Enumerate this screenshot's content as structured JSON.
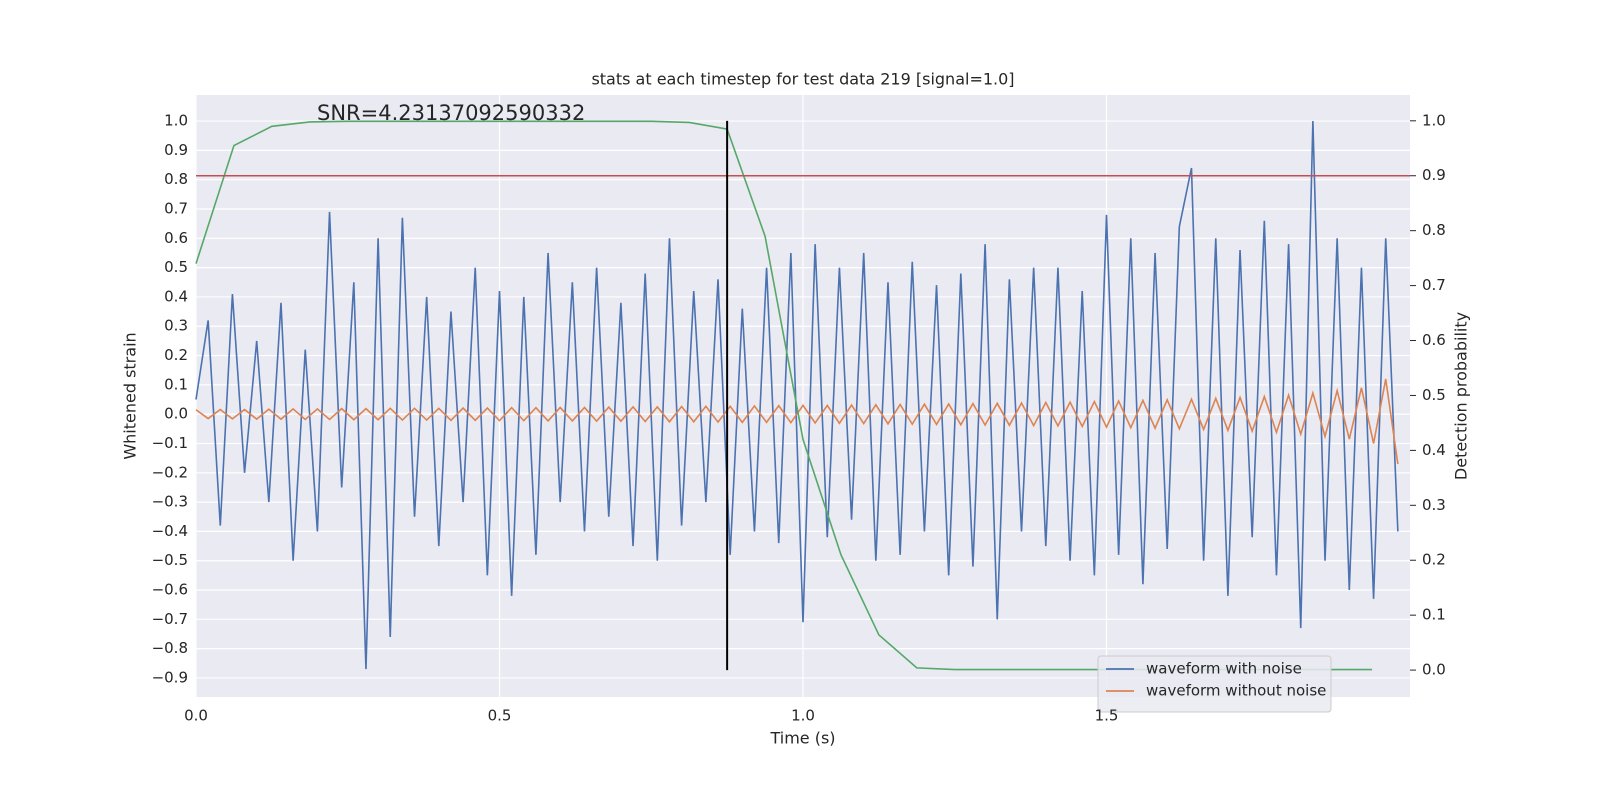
{
  "chart_data": {
    "type": "line",
    "title": "stats at each timestep for test data 219 [signal=1.0]",
    "annotation": "SNR=4.23137092590332",
    "x_label": "Time (s)",
    "y_label": "Whitened strain",
    "y2_label": "Detection probability",
    "xlim": [
      0,
      2.0
    ],
    "ylim": [
      -0.965,
      1.089
    ],
    "y2lim": [
      -0.049,
      1.047
    ],
    "xticks": [
      {
        "value": 0,
        "label": "0.0"
      },
      0.5,
      {
        "value": 1,
        "label": "1.0"
      },
      1.5
    ],
    "yticks": [
      {
        "value": -0.9,
        "label": "−0.9"
      },
      {
        "value": -0.8,
        "label": "−0.8"
      },
      {
        "value": -0.7,
        "label": "−0.7"
      },
      {
        "value": -0.6,
        "label": "−0.6"
      },
      {
        "value": -0.5,
        "label": "−0.5"
      },
      {
        "value": -0.4,
        "label": "−0.4"
      },
      {
        "value": -0.3,
        "label": "−0.3"
      },
      {
        "value": -0.2,
        "label": "−0.2"
      },
      {
        "value": -0.1,
        "label": "−0.1"
      },
      {
        "value": 0,
        "label": "0.0"
      },
      0.1,
      0.2,
      0.3,
      0.4,
      0.5,
      0.6,
      0.7,
      0.8,
      0.9,
      {
        "value": 1,
        "label": "1.0"
      }
    ],
    "y2ticks": [
      {
        "value": 0,
        "label": "0.0"
      },
      0.1,
      0.2,
      0.3,
      0.4,
      0.5,
      0.6,
      0.7,
      0.8,
      0.9,
      {
        "value": 1,
        "label": "1.0"
      }
    ],
    "grid": true,
    "legend": "lower right",
    "series": [
      {
        "name": "waveform with noise",
        "color": "#4c72b0",
        "x": [
          0,
          0.02,
          0.04,
          0.06,
          0.08,
          0.1,
          0.12,
          0.14,
          0.16,
          0.18,
          0.2,
          0.22,
          0.24,
          0.26,
          0.28,
          0.3,
          0.32,
          0.34,
          0.36,
          0.38,
          0.4,
          0.42,
          0.44,
          0.46,
          0.48,
          0.5,
          0.52,
          0.54,
          0.56,
          0.58,
          0.6,
          0.62,
          0.64,
          0.66,
          0.68,
          0.7,
          0.72,
          0.74,
          0.76,
          0.78,
          0.8,
          0.82,
          0.84,
          0.86,
          0.88,
          0.9,
          0.92,
          0.94,
          0.96,
          0.98,
          1.0,
          1.02,
          1.04,
          1.06,
          1.08,
          1.1,
          1.12,
          1.14,
          1.16,
          1.18,
          1.2,
          1.22,
          1.24,
          1.26,
          1.28,
          1.3,
          1.32,
          1.34,
          1.36,
          1.38,
          1.4,
          1.42,
          1.44,
          1.46,
          1.48,
          1.5,
          1.52,
          1.54,
          1.56,
          1.58,
          1.6,
          1.62,
          1.64,
          1.66,
          1.68,
          1.7,
          1.72,
          1.74,
          1.76,
          1.78,
          1.8,
          1.82,
          1.84,
          1.86,
          1.88,
          1.9,
          1.92,
          1.94,
          1.96,
          1.98
        ],
        "values": [
          0.05,
          0.32,
          -0.38,
          0.41,
          -0.2,
          0.25,
          -0.3,
          0.38,
          -0.5,
          0.22,
          -0.4,
          0.69,
          -0.25,
          0.45,
          -0.87,
          0.6,
          -0.76,
          0.67,
          -0.35,
          0.4,
          -0.45,
          0.35,
          -0.3,
          0.5,
          -0.55,
          0.42,
          -0.62,
          0.4,
          -0.48,
          0.55,
          -0.3,
          0.45,
          -0.4,
          0.5,
          -0.35,
          0.38,
          -0.45,
          0.48,
          -0.5,
          0.6,
          -0.38,
          0.42,
          -0.3,
          0.46,
          -0.48,
          0.36,
          -0.4,
          0.5,
          -0.44,
          0.55,
          -0.71,
          0.58,
          -0.42,
          0.5,
          -0.36,
          0.55,
          -0.5,
          0.45,
          -0.48,
          0.52,
          -0.4,
          0.44,
          -0.55,
          0.48,
          -0.52,
          0.58,
          -0.7,
          0.46,
          -0.4,
          0.5,
          -0.45,
          0.5,
          -0.5,
          0.42,
          -0.55,
          0.68,
          -0.48,
          0.6,
          -0.58,
          0.55,
          -0.46,
          0.64,
          0.84,
          -0.5,
          0.6,
          -0.62,
          0.56,
          -0.42,
          0.66,
          -0.55,
          0.58,
          -0.73,
          1.0,
          -0.5,
          0.6,
          -0.6,
          0.5,
          -0.63,
          0.6,
          -0.4
        ]
      },
      {
        "name": "waveform without noise",
        "color": "#dd8452",
        "x": [
          0,
          0.02,
          0.04,
          0.06,
          0.08,
          0.1,
          0.12,
          0.14,
          0.16,
          0.18,
          0.2,
          0.22,
          0.24,
          0.26,
          0.28,
          0.3,
          0.32,
          0.34,
          0.36,
          0.38,
          0.4,
          0.42,
          0.44,
          0.46,
          0.48,
          0.5,
          0.52,
          0.54,
          0.56,
          0.58,
          0.6,
          0.62,
          0.64,
          0.66,
          0.68,
          0.7,
          0.72,
          0.74,
          0.76,
          0.78,
          0.8,
          0.82,
          0.84,
          0.86,
          0.88,
          0.9,
          0.92,
          0.94,
          0.96,
          0.98,
          1.0,
          1.02,
          1.04,
          1.06,
          1.08,
          1.1,
          1.12,
          1.14,
          1.16,
          1.18,
          1.2,
          1.22,
          1.24,
          1.26,
          1.28,
          1.3,
          1.32,
          1.34,
          1.36,
          1.38,
          1.4,
          1.42,
          1.44,
          1.46,
          1.48,
          1.5,
          1.52,
          1.54,
          1.56,
          1.58,
          1.6,
          1.62,
          1.64,
          1.66,
          1.68,
          1.7,
          1.72,
          1.74,
          1.76,
          1.78,
          1.8,
          1.82,
          1.84,
          1.86,
          1.88,
          1.9,
          1.92,
          1.94,
          1.96,
          1.98
        ],
        "values": [
          0.015,
          -0.015,
          0.016,
          -0.016,
          0.016,
          -0.017,
          0.017,
          -0.017,
          0.018,
          -0.018,
          0.018,
          -0.018,
          0.019,
          -0.019,
          0.019,
          -0.019,
          0.02,
          -0.02,
          0.02,
          -0.02,
          0.02,
          -0.021,
          0.021,
          -0.021,
          0.021,
          -0.022,
          0.022,
          -0.022,
          0.022,
          -0.023,
          0.023,
          -0.023,
          0.023,
          -0.024,
          0.024,
          -0.024,
          0.025,
          -0.025,
          0.025,
          -0.026,
          0.026,
          -0.026,
          0.027,
          -0.027,
          0.027,
          -0.028,
          0.028,
          -0.028,
          0.029,
          -0.029,
          0.03,
          -0.03,
          0.03,
          -0.031,
          0.031,
          -0.032,
          0.032,
          -0.033,
          0.033,
          -0.034,
          0.034,
          -0.035,
          0.035,
          -0.036,
          0.036,
          -0.037,
          0.037,
          -0.038,
          0.038,
          -0.039,
          0.04,
          -0.04,
          0.041,
          -0.042,
          0.043,
          -0.044,
          0.045,
          -0.046,
          0.047,
          -0.048,
          0.049,
          -0.05,
          0.051,
          -0.052,
          0.054,
          -0.055,
          0.057,
          -0.058,
          0.06,
          -0.062,
          0.065,
          -0.068,
          0.072,
          -0.076,
          0.08,
          -0.085,
          0.09,
          -0.1,
          0.12,
          -0.17
        ]
      },
      {
        "color": "#55a868",
        "axis": "y2",
        "x": [
          0,
          0.0625,
          0.125,
          0.1875,
          0.25,
          0.3125,
          0.375,
          0.4375,
          0.5,
          0.5625,
          0.625,
          0.6875,
          0.75,
          0.8125,
          0.875,
          0.9375,
          1.0,
          1.0625,
          1.125,
          1.1875,
          1.25,
          1.3125,
          1.375,
          1.4375,
          1.5,
          1.5625,
          1.625,
          1.6875,
          1.75,
          1.8125,
          1.875,
          1.9375
        ],
        "values": [
          0.74,
          0.955,
          0.99,
          0.998,
          0.999,
          0.999,
          0.999,
          0.999,
          0.999,
          0.999,
          0.999,
          0.999,
          0.999,
          0.997,
          0.985,
          0.79,
          0.42,
          0.21,
          0.064,
          0.004,
          0.001,
          0.001,
          0.001,
          0.001,
          0.001,
          0.001,
          0.001,
          0.001,
          0.001,
          0.001,
          0.001,
          0.001
        ]
      }
    ],
    "hlines": [
      {
        "y": 0.9,
        "axis": "y2",
        "color": "#c44e52"
      }
    ],
    "vlines": [
      {
        "x": 0.875,
        "ymin": 0,
        "ymax": 1,
        "axis": "y2",
        "color": "#000000"
      }
    ]
  }
}
